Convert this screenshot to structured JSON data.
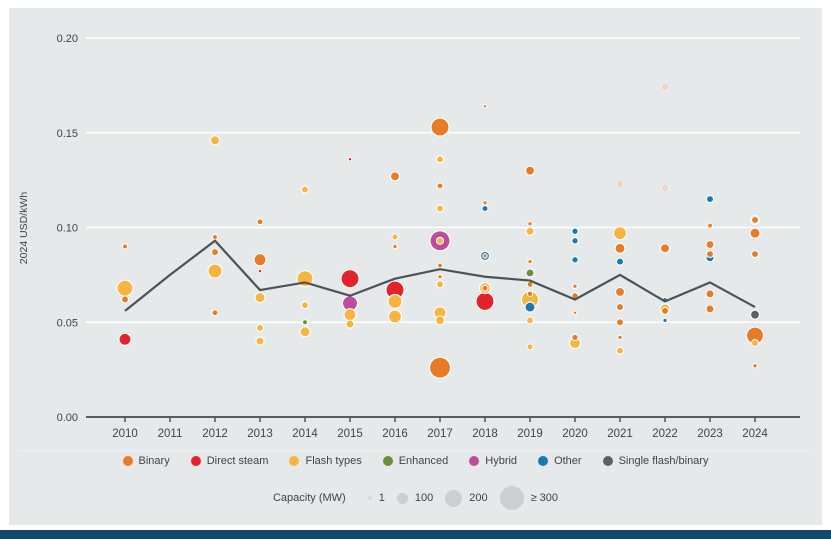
{
  "page": {
    "card_bg": "#e5e9ea",
    "bottom_bar_color": "#17486b",
    "gridline_color": "#ffffff",
    "axis_color": "#45494c",
    "text_color": "#3f4448"
  },
  "chart_data": {
    "type": "scatter",
    "title": "",
    "ylabel": "2024 USD/kWh",
    "ylim": [
      0.0,
      0.2
    ],
    "yticks": [
      "0.00",
      "0.05",
      "0.10",
      "0.15",
      "0.20"
    ],
    "categories": [
      "2010",
      "2011",
      "2012",
      "2013",
      "2014",
      "2015",
      "2016",
      "2017",
      "2018",
      "2019",
      "2020",
      "2021",
      "2022",
      "2023",
      "2024"
    ],
    "grid": "horizontal-white-on-gray",
    "legend_position": "bottom",
    "series_colors": {
      "binary": "#E87B26",
      "direct-steam": "#E2232B",
      "flash": "#F6B440",
      "enhanced": "#6A8F3B",
      "hybrid": "#BE4C9C",
      "other": "#1879B5",
      "single-flash-binary": "#5B6166"
    },
    "legend": [
      {
        "label": "Binary",
        "type": "binary"
      },
      {
        "label": "Direct steam",
        "type": "direct-steam"
      },
      {
        "label": "Flash types",
        "type": "flash"
      },
      {
        "label": "Enhanced",
        "type": "enhanced"
      },
      {
        "label": "Hybrid",
        "type": "hybrid"
      },
      {
        "label": "Other",
        "type": "other"
      },
      {
        "label": "Single flash/binary",
        "type": "single-flash-binary"
      }
    ],
    "capacity_legend": {
      "label": "Capacity (MW)",
      "circle_color": "#c5cbcd",
      "items": [
        {
          "label": "1",
          "r": 2
        },
        {
          "label": "100",
          "r": 5.5
        },
        {
          "label": "200",
          "r": 8.5
        },
        {
          "label": "≥ 300",
          "r": 12
        }
      ]
    },
    "line": {
      "name": "Weighted average",
      "color": "#4A5358",
      "values": [
        0.056,
        0.075,
        0.093,
        0.067,
        0.071,
        0.064,
        0.073,
        0.078,
        0.074,
        0.072,
        0.062,
        0.075,
        0.061,
        0.071,
        0.058
      ]
    },
    "points": [
      {
        "year": "2010",
        "value": 0.09,
        "r": 2.5,
        "type": "binary"
      },
      {
        "year": "2010",
        "value": 0.068,
        "r": 8.0,
        "type": "flash"
      },
      {
        "year": "2010",
        "value": 0.062,
        "r": 3.5,
        "type": "binary"
      },
      {
        "year": "2010",
        "value": 0.041,
        "r": 6.0,
        "type": "direct-steam"
      },
      {
        "year": "2012",
        "value": 0.146,
        "r": 4.5,
        "type": "flash"
      },
      {
        "year": "2012",
        "value": 0.095,
        "r": 2.5,
        "type": "binary"
      },
      {
        "year": "2012",
        "value": 0.087,
        "r": 3.5,
        "type": "binary"
      },
      {
        "year": "2012",
        "value": 0.077,
        "r": 7.0,
        "type": "flash"
      },
      {
        "year": "2012",
        "value": 0.055,
        "r": 3.0,
        "type": "binary"
      },
      {
        "year": "2013",
        "value": 0.103,
        "r": 3.0,
        "type": "binary"
      },
      {
        "year": "2013",
        "value": 0.083,
        "r": 6.0,
        "type": "binary"
      },
      {
        "year": "2013",
        "value": 0.077,
        "r": 1.8,
        "type": "direct-steam"
      },
      {
        "year": "2013",
        "value": 0.063,
        "r": 5.0,
        "type": "flash"
      },
      {
        "year": "2013",
        "value": 0.047,
        "r": 3.5,
        "type": "flash"
      },
      {
        "year": "2013",
        "value": 0.04,
        "r": 4.0,
        "type": "flash"
      },
      {
        "year": "2014",
        "value": 0.12,
        "r": 3.5,
        "type": "flash"
      },
      {
        "year": "2014",
        "value": 0.073,
        "r": 8.0,
        "type": "flash"
      },
      {
        "year": "2014",
        "value": 0.059,
        "r": 3.5,
        "type": "flash"
      },
      {
        "year": "2014",
        "value": 0.05,
        "r": 2.5,
        "type": "enhanced"
      },
      {
        "year": "2014",
        "value": 0.045,
        "r": 5.0,
        "type": "flash"
      },
      {
        "year": "2015",
        "value": 0.136,
        "r": 1.8,
        "type": "direct-steam"
      },
      {
        "year": "2015",
        "value": 0.073,
        "r": 9.0,
        "type": "direct-steam"
      },
      {
        "year": "2015",
        "value": 0.06,
        "r": 7.5,
        "type": "hybrid"
      },
      {
        "year": "2015",
        "value": 0.054,
        "r": 6.0,
        "type": "flash"
      },
      {
        "year": "2015",
        "value": 0.049,
        "r": 4.0,
        "type": "flash"
      },
      {
        "year": "2016",
        "value": 0.127,
        "r": 4.5,
        "type": "binary"
      },
      {
        "year": "2016",
        "value": 0.095,
        "r": 3.0,
        "type": "flash"
      },
      {
        "year": "2016",
        "value": 0.09,
        "r": 2.2,
        "type": "binary"
      },
      {
        "year": "2016",
        "value": 0.067,
        "r": 9.0,
        "type": "direct-steam"
      },
      {
        "year": "2016",
        "value": 0.061,
        "r": 7.0,
        "type": "flash"
      },
      {
        "year": "2016",
        "value": 0.053,
        "r": 6.5,
        "type": "flash"
      },
      {
        "year": "2017",
        "value": 0.153,
        "r": 9.0,
        "type": "binary"
      },
      {
        "year": "2017",
        "value": 0.136,
        "r": 3.5,
        "type": "flash"
      },
      {
        "year": "2017",
        "value": 0.122,
        "r": 3.0,
        "type": "binary"
      },
      {
        "year": "2017",
        "value": 0.11,
        "r": 3.5,
        "type": "flash"
      },
      {
        "year": "2017",
        "value": 0.093,
        "r": 10.0,
        "type": "hybrid"
      },
      {
        "year": "2017",
        "value": 0.093,
        "r": 3.5,
        "type": "flash"
      },
      {
        "year": "2017",
        "value": 0.08,
        "r": 2.5,
        "type": "binary"
      },
      {
        "year": "2017",
        "value": 0.074,
        "r": 2.2,
        "type": "binary"
      },
      {
        "year": "2017",
        "value": 0.07,
        "r": 3.5,
        "type": "flash"
      },
      {
        "year": "2017",
        "value": 0.055,
        "r": 6.0,
        "type": "flash"
      },
      {
        "year": "2017",
        "value": 0.051,
        "r": 4.5,
        "type": "flash"
      },
      {
        "year": "2017",
        "value": 0.026,
        "r": 10.5,
        "type": "binary"
      },
      {
        "year": "2018",
        "value": 0.164,
        "r": 1.8,
        "type": "binary"
      },
      {
        "year": "2018",
        "value": 0.113,
        "r": 2.2,
        "type": "binary"
      },
      {
        "year": "2018",
        "value": 0.11,
        "r": 3.0,
        "type": "other"
      },
      {
        "year": "2018",
        "value": 0.085,
        "r": 4.5,
        "type": "other"
      },
      {
        "year": "2018",
        "value": 0.085,
        "r": 2.2,
        "type": "binary"
      },
      {
        "year": "2018",
        "value": 0.068,
        "r": 5.5,
        "type": "flash"
      },
      {
        "year": "2018",
        "value": 0.068,
        "r": 3.0,
        "type": "binary"
      },
      {
        "year": "2018",
        "value": 0.061,
        "r": 9.0,
        "type": "direct-steam"
      },
      {
        "year": "2019",
        "value": 0.13,
        "r": 4.5,
        "type": "binary"
      },
      {
        "year": "2019",
        "value": 0.102,
        "r": 2.2,
        "type": "binary"
      },
      {
        "year": "2019",
        "value": 0.098,
        "r": 4.0,
        "type": "flash"
      },
      {
        "year": "2019",
        "value": 0.082,
        "r": 2.2,
        "type": "binary"
      },
      {
        "year": "2019",
        "value": 0.076,
        "r": 4.0,
        "type": "enhanced"
      },
      {
        "year": "2019",
        "value": 0.07,
        "r": 3.0,
        "type": "binary"
      },
      {
        "year": "2019",
        "value": 0.065,
        "r": 2.7,
        "type": "binary"
      },
      {
        "year": "2019",
        "value": 0.062,
        "r": 8.5,
        "type": "flash"
      },
      {
        "year": "2019",
        "value": 0.058,
        "r": 5.0,
        "type": "other"
      },
      {
        "year": "2019",
        "value": 0.051,
        "r": 3.5,
        "type": "flash"
      },
      {
        "year": "2019",
        "value": 0.037,
        "r": 3.0,
        "type": "flash"
      },
      {
        "year": "2020",
        "value": 0.098,
        "r": 3.2,
        "type": "other"
      },
      {
        "year": "2020",
        "value": 0.093,
        "r": 3.2,
        "type": "other"
      },
      {
        "year": "2020",
        "value": 0.083,
        "r": 3.2,
        "type": "other"
      },
      {
        "year": "2020",
        "value": 0.069,
        "r": 2.2,
        "type": "binary"
      },
      {
        "year": "2020",
        "value": 0.064,
        "r": 3.2,
        "type": "binary"
      },
      {
        "year": "2020",
        "value": 0.055,
        "r": 1.8,
        "type": "binary"
      },
      {
        "year": "2020",
        "value": 0.042,
        "r": 3.2,
        "type": "binary"
      },
      {
        "year": "2020",
        "value": 0.039,
        "r": 5.5,
        "type": "flash"
      },
      {
        "year": "2021",
        "value": 0.123,
        "r": 1.8,
        "type": "flash",
        "pale": true
      },
      {
        "year": "2021",
        "value": 0.097,
        "r": 6.5,
        "type": "flash"
      },
      {
        "year": "2021",
        "value": 0.089,
        "r": 5.0,
        "type": "binary"
      },
      {
        "year": "2021",
        "value": 0.082,
        "r": 3.5,
        "type": "other"
      },
      {
        "year": "2021",
        "value": 0.066,
        "r": 4.5,
        "type": "binary"
      },
      {
        "year": "2021",
        "value": 0.058,
        "r": 3.5,
        "type": "binary"
      },
      {
        "year": "2021",
        "value": 0.05,
        "r": 3.5,
        "type": "binary"
      },
      {
        "year": "2021",
        "value": 0.042,
        "r": 2.2,
        "type": "binary"
      },
      {
        "year": "2021",
        "value": 0.035,
        "r": 3.5,
        "type": "flash"
      },
      {
        "year": "2022",
        "value": 0.174,
        "r": 1.8,
        "type": "flash",
        "pale": true
      },
      {
        "year": "2022",
        "value": 0.121,
        "r": 1.8,
        "type": "flash",
        "pale": true
      },
      {
        "year": "2022",
        "value": 0.089,
        "r": 4.5,
        "type": "binary"
      },
      {
        "year": "2022",
        "value": 0.062,
        "r": 2.2,
        "type": "other"
      },
      {
        "year": "2022",
        "value": 0.057,
        "r": 5.0,
        "type": "flash"
      },
      {
        "year": "2022",
        "value": 0.056,
        "r": 3.5,
        "type": "binary"
      },
      {
        "year": "2022",
        "value": 0.051,
        "r": 2.2,
        "type": "other"
      },
      {
        "year": "2023",
        "value": 0.115,
        "r": 3.5,
        "type": "other"
      },
      {
        "year": "2023",
        "value": 0.101,
        "r": 2.5,
        "type": "binary"
      },
      {
        "year": "2023",
        "value": 0.091,
        "r": 4.0,
        "type": "binary"
      },
      {
        "year": "2023",
        "value": 0.086,
        "r": 3.5,
        "type": "binary"
      },
      {
        "year": "2023",
        "value": 0.084,
        "r": 4.0,
        "type": "other"
      },
      {
        "year": "2023",
        "value": 0.065,
        "r": 4.0,
        "type": "binary"
      },
      {
        "year": "2023",
        "value": 0.057,
        "r": 4.0,
        "type": "binary"
      },
      {
        "year": "2024",
        "value": 0.104,
        "r": 4.5,
        "type": "single-flash-binary"
      },
      {
        "year": "2024",
        "value": 0.104,
        "r": 3.5,
        "type": "binary"
      },
      {
        "year": "2024",
        "value": 0.097,
        "r": 5.0,
        "type": "binary"
      },
      {
        "year": "2024",
        "value": 0.086,
        "r": 3.5,
        "type": "binary"
      },
      {
        "year": "2024",
        "value": 0.054,
        "r": 4.5,
        "type": "single-flash-binary"
      },
      {
        "year": "2024",
        "value": 0.043,
        "r": 8.5,
        "type": "binary"
      },
      {
        "year": "2024",
        "value": 0.039,
        "r": 3.5,
        "type": "flash"
      },
      {
        "year": "2024",
        "value": 0.027,
        "r": 2.2,
        "type": "binary"
      }
    ]
  }
}
